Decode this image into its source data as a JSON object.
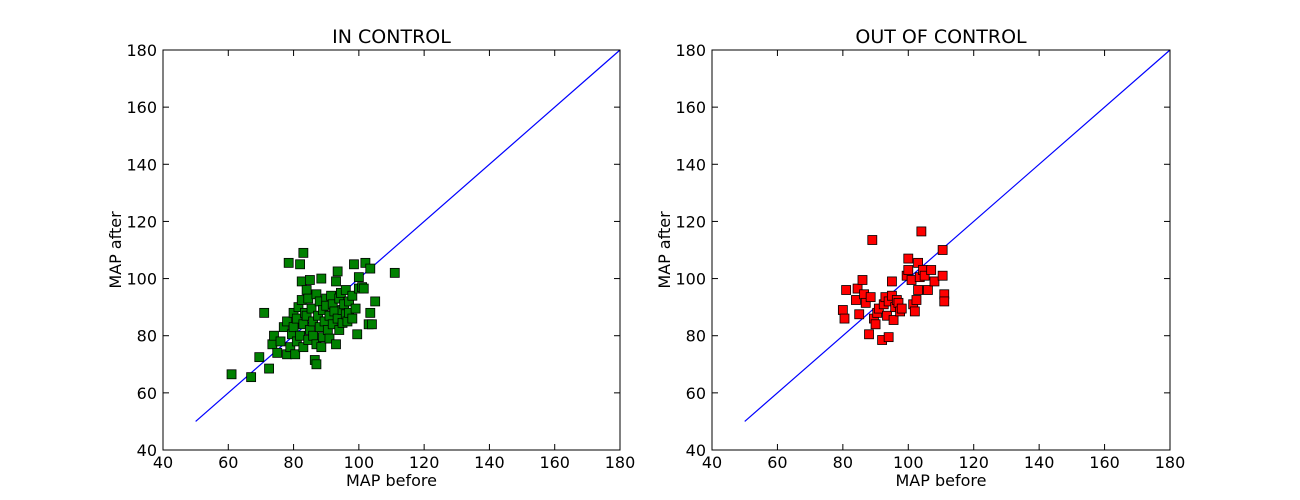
{
  "chart_data": [
    {
      "type": "scatter",
      "title": "IN CONTROL",
      "xlabel": "MAP before",
      "ylabel": "MAP after",
      "xlim": [
        40,
        180
      ],
      "ylim": [
        40,
        180
      ],
      "xticks": [
        40,
        60,
        80,
        100,
        120,
        140,
        160,
        180
      ],
      "yticks": [
        40,
        60,
        80,
        100,
        120,
        140,
        160,
        180
      ],
      "grid": false,
      "marker_color": "#008000",
      "line_color": "#0000ff",
      "reference_line": {
        "x": [
          50,
          180
        ],
        "y": [
          50,
          180
        ]
      },
      "series": [
        {
          "points": [
            [
              61,
              66.5
            ],
            [
              67,
              65.5
            ],
            [
              69.5,
              72.5
            ],
            [
              72.5,
              68.5
            ],
            [
              71,
              88
            ],
            [
              73.5,
              77
            ],
            [
              74,
              80
            ],
            [
              75,
              74
            ],
            [
              76,
              78
            ],
            [
              77,
              83
            ],
            [
              78,
              73.5
            ],
            [
              78,
              85
            ],
            [
              78.5,
              105.5
            ],
            [
              79,
              76
            ],
            [
              79.5,
              80.5
            ],
            [
              80,
              83
            ],
            [
              80,
              88
            ],
            [
              80.5,
              73.5
            ],
            [
              81,
              78
            ],
            [
              81,
              86
            ],
            [
              81.5,
              90
            ],
            [
              82,
              105
            ],
            [
              82,
              80
            ],
            [
              82.5,
              99
            ],
            [
              82.5,
              92.5
            ],
            [
              83,
              109
            ],
            [
              83,
              84
            ],
            [
              83,
              76
            ],
            [
              83.5,
              88
            ],
            [
              84,
              87
            ],
            [
              84,
              96
            ],
            [
              84.5,
              93
            ],
            [
              84.5,
              78.5
            ],
            [
              85,
              99.5
            ],
            [
              85,
              82
            ],
            [
              85.5,
              89.5
            ],
            [
              86,
              85
            ],
            [
              86,
              80
            ],
            [
              86.5,
              71.5
            ],
            [
              87,
              70
            ],
            [
              87,
              94.5
            ],
            [
              87,
              77
            ],
            [
              87.5,
              87
            ],
            [
              88,
              92
            ],
            [
              88,
              83
            ],
            [
              88.5,
              100
            ],
            [
              88.5,
              76
            ],
            [
              89,
              89
            ],
            [
              89,
              79.5
            ],
            [
              89.5,
              85
            ],
            [
              90,
              93
            ],
            [
              90,
              90.5
            ],
            [
              90.5,
              82
            ],
            [
              91,
              87
            ],
            [
              91,
              79
            ],
            [
              91.5,
              94
            ],
            [
              92,
              84
            ],
            [
              92,
              91
            ],
            [
              92.5,
              88.5
            ],
            [
              93,
              77
            ],
            [
              93,
              99
            ],
            [
              93.5,
              102.5
            ],
            [
              93.5,
              86
            ],
            [
              94,
              82
            ],
            [
              94,
              93
            ],
            [
              94.5,
              95
            ],
            [
              95,
              89
            ],
            [
              95,
              84.5
            ],
            [
              95.5,
              91
            ],
            [
              96,
              87.5
            ],
            [
              96,
              96
            ],
            [
              96.5,
              85
            ],
            [
              97,
              92
            ],
            [
              97,
              88
            ],
            [
              98,
              94
            ],
            [
              98,
              86
            ],
            [
              98.5,
              105
            ],
            [
              99,
              89.5
            ],
            [
              99.5,
              80.5
            ],
            [
              100,
              96.5
            ],
            [
              100,
              100.5
            ],
            [
              101,
              97
            ],
            [
              101.5,
              96.5
            ],
            [
              102,
              105.5
            ],
            [
              103,
              84
            ],
            [
              103.5,
              88
            ],
            [
              103.5,
              103.5
            ],
            [
              104,
              84
            ],
            [
              105,
              92
            ],
            [
              111,
              102
            ]
          ]
        }
      ]
    },
    {
      "type": "scatter",
      "title": "OUT OF CONTROL",
      "xlabel": "MAP before",
      "ylabel": "MAP after",
      "xlim": [
        40,
        180
      ],
      "ylim": [
        40,
        180
      ],
      "xticks": [
        40,
        60,
        80,
        100,
        120,
        140,
        160,
        180
      ],
      "yticks": [
        40,
        60,
        80,
        100,
        120,
        140,
        160,
        180
      ],
      "grid": false,
      "marker_color": "#ff0000",
      "line_color": "#0000ff",
      "reference_line": {
        "x": [
          50,
          180
        ],
        "y": [
          50,
          180
        ]
      },
      "series": [
        {
          "points": [
            [
              80,
              89
            ],
            [
              80.5,
              86
            ],
            [
              81,
              96
            ],
            [
              84,
              92.5
            ],
            [
              84.5,
              96.5
            ],
            [
              85,
              87.5
            ],
            [
              86,
              99.5
            ],
            [
              86.5,
              94.5
            ],
            [
              87,
              91.5
            ],
            [
              88,
              80.5
            ],
            [
              88.5,
              93.5
            ],
            [
              89,
              113.5
            ],
            [
              89.5,
              86
            ],
            [
              90,
              84
            ],
            [
              90.5,
              88
            ],
            [
              91,
              89.5
            ],
            [
              92,
              78.5
            ],
            [
              92.5,
              91
            ],
            [
              93,
              93.5
            ],
            [
              93.5,
              87
            ],
            [
              94,
              79.5
            ],
            [
              94,
              92
            ],
            [
              95,
              94
            ],
            [
              95,
              99
            ],
            [
              95.5,
              85.5
            ],
            [
              96,
              90
            ],
            [
              96.5,
              92.5
            ],
            [
              97,
              91.5
            ],
            [
              97.5,
              88.5
            ],
            [
              98,
              89.5
            ],
            [
              99.5,
              101
            ],
            [
              100,
              103
            ],
            [
              100,
              107
            ],
            [
              101,
              99.5
            ],
            [
              101.5,
              91
            ],
            [
              102,
              88.5
            ],
            [
              102.5,
              92.5
            ],
            [
              103,
              105.5
            ],
            [
              103,
              96
            ],
            [
              103.5,
              100.5
            ],
            [
              104,
              116.5
            ],
            [
              104.5,
              103
            ],
            [
              105,
              101
            ],
            [
              106,
              96
            ],
            [
              107,
              103
            ],
            [
              108,
              99
            ],
            [
              110.5,
              110
            ],
            [
              110.5,
              101
            ],
            [
              111,
              94.5
            ],
            [
              111,
              92
            ]
          ]
        }
      ]
    }
  ]
}
